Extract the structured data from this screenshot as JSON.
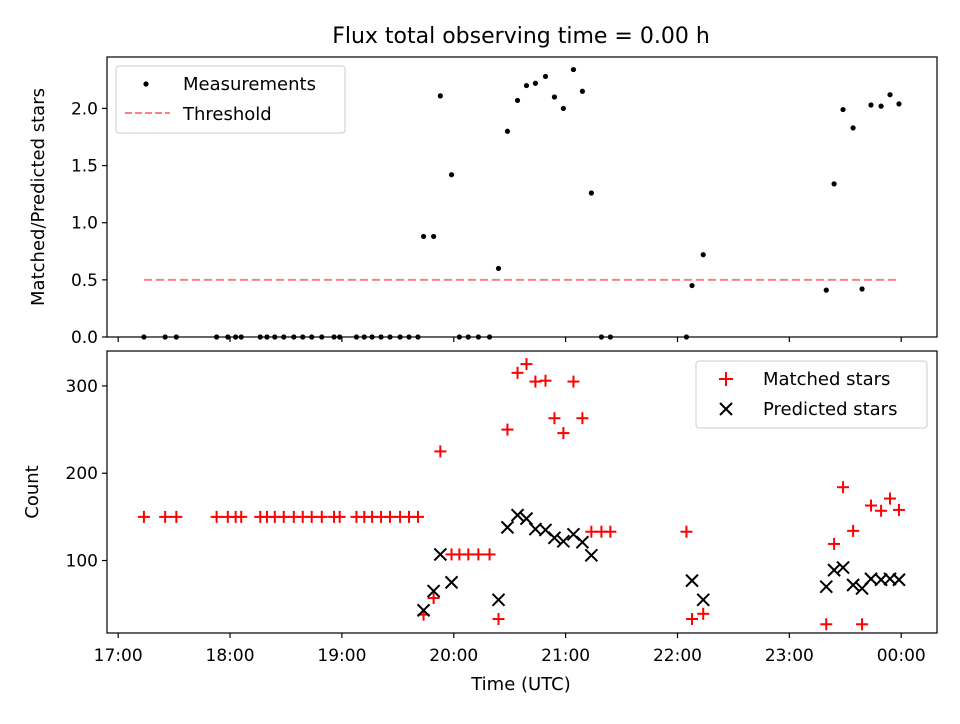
{
  "chart_data": [
    {
      "type": "scatter",
      "title": "Flux total observing time = 0.00 h",
      "xlabel": "",
      "ylabel": "Matched/Predicted stars",
      "xlim": [
        16.9,
        24.32
      ],
      "ylim": [
        0,
        2.45
      ],
      "yticks": [
        0.0,
        0.5,
        1.0,
        1.5,
        2.0
      ],
      "ytick_labels": [
        "0.0",
        "0.5",
        "1.0",
        "1.5",
        "2.0"
      ],
      "legend": {
        "position": "upper-left",
        "entries": [
          "Measurements",
          "Threshold"
        ]
      },
      "series": [
        {
          "name": "Measurements",
          "marker": "dot",
          "color": "#000000",
          "x": [
            17.23,
            17.42,
            17.52,
            17.88,
            17.98,
            18.05,
            18.1,
            18.27,
            18.33,
            18.4,
            18.48,
            18.57,
            18.65,
            18.73,
            18.82,
            18.93,
            18.98,
            19.13,
            19.2,
            19.27,
            19.35,
            19.43,
            19.52,
            19.6,
            19.68,
            19.73,
            19.82,
            19.88,
            19.98,
            20.05,
            20.13,
            20.22,
            20.32,
            20.4,
            20.48,
            20.57,
            20.65,
            20.73,
            20.82,
            20.9,
            20.98,
            21.07,
            21.15,
            21.23,
            21.32,
            21.4,
            22.08,
            22.13,
            22.23,
            23.33,
            23.4,
            23.48,
            23.57,
            23.65,
            23.73,
            23.82,
            23.9,
            23.98
          ],
          "y": [
            0,
            0,
            0,
            0,
            0,
            0,
            0,
            0,
            0,
            0,
            0,
            0,
            0,
            0,
            0,
            0,
            0,
            0,
            0,
            0,
            0,
            0,
            0,
            0,
            0,
            0.88,
            0.88,
            2.11,
            1.42,
            0,
            0,
            0,
            0,
            0.6,
            1.8,
            2.07,
            2.2,
            2.22,
            2.28,
            2.1,
            2.0,
            2.34,
            2.15,
            1.26,
            0,
            0,
            0,
            0.45,
            0.72,
            0.41,
            1.34,
            1.99,
            1.83,
            0.42,
            2.03,
            2.02,
            2.12,
            2.04
          ]
        },
        {
          "name": "Threshold",
          "marker": "dashed-line",
          "color": "#ff8080",
          "x": [
            17.23,
            23.98
          ],
          "y": [
            0.5,
            0.5
          ]
        }
      ]
    },
    {
      "type": "scatter",
      "title": "",
      "xlabel": "Time (UTC)",
      "ylabel": "Count",
      "xlim": [
        16.9,
        24.32
      ],
      "ylim": [
        17,
        340
      ],
      "xticks": [
        17,
        18,
        19,
        20,
        21,
        22,
        23,
        24
      ],
      "xtick_labels": [
        "17:00",
        "18:00",
        "19:00",
        "20:00",
        "21:00",
        "22:00",
        "23:00",
        "00:00"
      ],
      "yticks": [
        100,
        200,
        300
      ],
      "ytick_labels": [
        "100",
        "200",
        "300"
      ],
      "legend": {
        "position": "upper-right",
        "entries": [
          "Matched stars",
          "Predicted stars"
        ]
      },
      "series": [
        {
          "name": "Matched stars",
          "marker": "plus",
          "color": "#ff0000",
          "x": [
            17.23,
            17.42,
            17.52,
            17.88,
            17.98,
            18.05,
            18.1,
            18.27,
            18.33,
            18.4,
            18.48,
            18.57,
            18.65,
            18.73,
            18.82,
            18.93,
            18.98,
            19.13,
            19.2,
            19.27,
            19.35,
            19.43,
            19.52,
            19.6,
            19.68,
            19.73,
            19.82,
            19.88,
            19.98,
            20.05,
            20.13,
            20.22,
            20.32,
            20.4,
            20.48,
            20.57,
            20.65,
            20.73,
            20.82,
            20.9,
            20.98,
            21.07,
            21.15,
            21.23,
            21.32,
            21.4,
            22.08,
            22.13,
            22.23,
            23.33,
            23.4,
            23.48,
            23.57,
            23.65,
            23.73,
            23.82,
            23.9,
            23.98
          ],
          "y": [
            150,
            150,
            150,
            150,
            150,
            150,
            150,
            150,
            150,
            150,
            150,
            150,
            150,
            150,
            150,
            150,
            150,
            150,
            150,
            150,
            150,
            150,
            150,
            150,
            150,
            38,
            57,
            225,
            107,
            107,
            107,
            107,
            107,
            33,
            250,
            315,
            325,
            305,
            306,
            263,
            246,
            305,
            263,
            133,
            133,
            133,
            133,
            33,
            39,
            27,
            119,
            184,
            134,
            27,
            163,
            157,
            171,
            158
          ]
        },
        {
          "name": "Predicted stars",
          "marker": "x",
          "color": "#000000",
          "x": [
            19.73,
            19.82,
            19.88,
            19.98,
            20.4,
            20.48,
            20.57,
            20.65,
            20.73,
            20.82,
            20.9,
            20.98,
            21.07,
            21.15,
            21.23,
            22.13,
            22.23,
            23.33,
            23.4,
            23.48,
            23.57,
            23.65,
            23.73,
            23.82,
            23.9,
            23.98
          ],
          "y": [
            43,
            65,
            107,
            75,
            55,
            138,
            152,
            148,
            136,
            135,
            126,
            122,
            130,
            121,
            106,
            77,
            55,
            70,
            89,
            92,
            72,
            68,
            79,
            78,
            79,
            78
          ]
        }
      ]
    }
  ]
}
